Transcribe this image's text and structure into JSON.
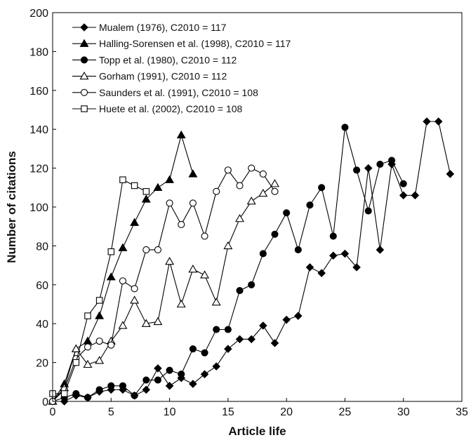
{
  "chart_data": {
    "type": "line",
    "title": "",
    "xlabel": "Article life",
    "ylabel": "Number of citations",
    "xlim": [
      0,
      35
    ],
    "ylim": [
      0,
      200
    ],
    "xticks": [
      0,
      5,
      10,
      15,
      20,
      25,
      30,
      35
    ],
    "yticks": [
      0,
      20,
      40,
      60,
      80,
      100,
      120,
      140,
      160,
      180,
      200
    ],
    "grid": false,
    "legend_position": "top-left",
    "series": [
      {
        "name": "Mualem (1976), C2010 = 117",
        "marker": "diamond-filled",
        "x": [
          0,
          1,
          2,
          3,
          4,
          5,
          6,
          7,
          8,
          9,
          10,
          11,
          12,
          13,
          14,
          15,
          16,
          17,
          18,
          19,
          20,
          21,
          22,
          23,
          24,
          25,
          26,
          27,
          28,
          29,
          30,
          31,
          32,
          33,
          34
        ],
        "y": [
          0,
          0,
          3,
          2,
          5,
          6,
          6,
          3,
          6,
          17,
          8,
          12,
          9,
          14,
          18,
          27,
          32,
          32,
          39,
          30,
          42,
          44,
          69,
          66,
          75,
          76,
          69,
          120,
          78,
          122,
          106,
          106,
          144,
          144,
          117
        ]
      },
      {
        "name": "Halling-Sorensen et al. (1998), C2010 = 117",
        "marker": "triangle-filled",
        "x": [
          0,
          1,
          2,
          3,
          4,
          5,
          6,
          7,
          8,
          9,
          10,
          11,
          12
        ],
        "y": [
          0,
          9,
          27,
          31,
          44,
          64,
          79,
          92,
          104,
          110,
          114,
          137,
          117
        ]
      },
      {
        "name": "Topp et al. (1980), C2010 = 112",
        "marker": "circle-filled",
        "x": [
          0,
          1,
          2,
          3,
          4,
          5,
          6,
          7,
          8,
          9,
          10,
          11,
          12,
          13,
          14,
          15,
          16,
          17,
          18,
          19,
          20,
          21,
          22,
          23,
          24,
          25,
          26,
          27,
          28,
          29,
          30
        ],
        "y": [
          0,
          2,
          4,
          2,
          6,
          8,
          8,
          3,
          11,
          11,
          16,
          14,
          27,
          25,
          37,
          37,
          57,
          60,
          76,
          86,
          97,
          78,
          101,
          110,
          85,
          141,
          119,
          98,
          122,
          124,
          112
        ]
      },
      {
        "name": "Gorham (1991), C2010 = 112",
        "marker": "triangle-open",
        "x": [
          0,
          1,
          2,
          3,
          4,
          5,
          6,
          7,
          8,
          9,
          10,
          11,
          12,
          13,
          14,
          15,
          16,
          17,
          18,
          19
        ],
        "y": [
          0,
          7,
          27,
          19,
          21,
          31,
          39,
          52,
          40,
          41,
          72,
          50,
          68,
          65,
          51,
          80,
          94,
          103,
          107,
          112
        ]
      },
      {
        "name": "Saunders et al. (1991), C2010 = 108",
        "marker": "circle-open",
        "x": [
          0,
          1,
          2,
          3,
          4,
          5,
          6,
          7,
          8,
          9,
          10,
          11,
          12,
          13,
          14,
          15,
          16,
          17,
          18,
          19
        ],
        "y": [
          0,
          6,
          22,
          28,
          31,
          29,
          62,
          58,
          78,
          78,
          102,
          91,
          102,
          85,
          108,
          119,
          111,
          120,
          117,
          108
        ]
      },
      {
        "name": "Huete et al. (2002), C2010 = 108",
        "marker": "square-open",
        "x": [
          0,
          1,
          2,
          3,
          4,
          5,
          6,
          7,
          8
        ],
        "y": [
          4,
          4,
          20,
          44,
          52,
          77,
          114,
          111,
          108
        ]
      }
    ]
  }
}
